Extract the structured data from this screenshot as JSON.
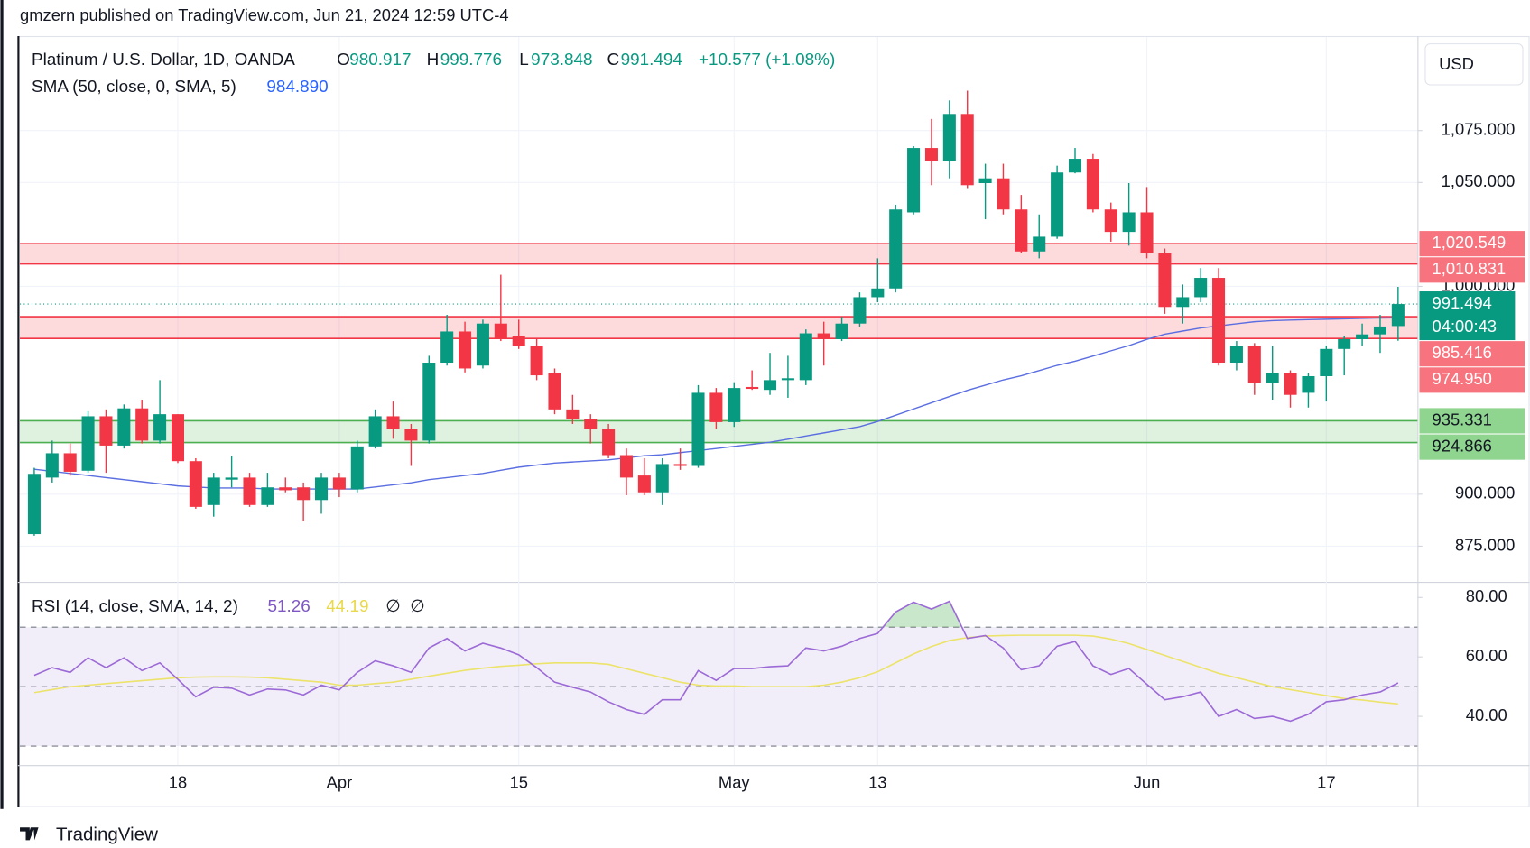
{
  "header": "gmzern published on TradingView.com, Jun 21, 2024 12:59 UTC-4",
  "footer": "TradingView",
  "chart_data": [
    {
      "type": "candlestick",
      "title": "Platinum / U.S. Dollar, 1D, OANDA",
      "ohlc_legend": [
        {
          "label": "O",
          "value": "980.917"
        },
        {
          "label": "H",
          "value": "999.776"
        },
        {
          "label": "L",
          "value": "973.848"
        },
        {
          "label": "C",
          "value": "991.494"
        }
      ],
      "change": "+10.577 (+1.08%)",
      "currency": "USD",
      "categories": [
        null,
        null,
        null,
        null,
        null,
        null,
        null,
        null,
        "18",
        null,
        null,
        null,
        null,
        null,
        null,
        null,
        null,
        "Apr",
        null,
        null,
        null,
        null,
        null,
        null,
        null,
        null,
        null,
        "15",
        null,
        null,
        null,
        null,
        null,
        null,
        null,
        null,
        null,
        null,
        null,
        "May",
        null,
        null,
        null,
        null,
        null,
        null,
        null,
        "13",
        null,
        null,
        null,
        null,
        null,
        null,
        null,
        null,
        null,
        null,
        null,
        null,
        null,
        null,
        "Jun",
        null,
        null,
        null,
        null,
        null,
        null,
        null,
        null,
        null,
        "17",
        null,
        null,
        null,
        null
      ],
      "open": [
        880.8,
        908.0,
        919.7,
        911.3,
        937.5,
        923.4,
        941.3,
        925.8,
        938.5,
        915.9,
        894.8,
        907.0,
        908.0,
        894.8,
        903.3,
        903.3,
        897.2,
        908.0,
        902.3,
        923.0,
        937.5,
        931.4,
        925.8,
        963.3,
        978.3,
        961.9,
        982.1,
        976.0,
        971.3,
        958.2,
        940.8,
        936.1,
        931.4,
        918.8,
        909.0,
        900.9,
        914.5,
        913.6,
        948.8,
        934.7,
        951.6,
        950.2,
        954.9,
        954.9,
        977.4,
        974.6,
        982.1,
        994.8,
        999.0,
        1035.6,
        1066.6,
        1060.5,
        1083.0,
        1049.7,
        1052.0,
        1037.0,
        1016.8,
        1023.9,
        1054.8,
        1061.4,
        1037.0,
        1026.2,
        1035.6,
        1015.9,
        990.1,
        994.8,
        1004.1,
        963.3,
        971.3,
        953.5,
        958.2,
        948.8,
        956.8,
        969.9,
        974.6,
        976.9,
        980.917
      ],
      "high": [
        912.7,
        925.8,
        924.4,
        939.9,
        940.8,
        943.2,
        945.5,
        954.9,
        938.5,
        917.3,
        910.3,
        918.3,
        910.3,
        910.3,
        908.0,
        905.6,
        910.3,
        910.3,
        925.8,
        940.8,
        944.6,
        933.8,
        966.6,
        986.3,
        983.0,
        984.0,
        1005.6,
        984.0,
        974.6,
        960.5,
        947.8,
        938.5,
        933.8,
        922.0,
        917.3,
        917.3,
        922.0,
        952.5,
        951.1,
        953.9,
        959.6,
        968.0,
        966.6,
        979.3,
        983.0,
        985.4,
        997.1,
        1013.5,
        1039.3,
        1067.5,
        1080.6,
        1089.5,
        1094.2,
        1059.0,
        1059.0,
        1044.0,
        1034.6,
        1058.1,
        1066.6,
        1063.7,
        1040.3,
        1049.7,
        1047.8,
        1018.2,
        1000.9,
        1008.8,
        1008.8,
        973.7,
        972.7,
        971.3,
        959.6,
        958.2,
        971.3,
        976.0,
        982.1,
        986.3,
        999.776
      ],
      "low": [
        880.0,
        905.6,
        908.9,
        910.3,
        910.3,
        922.0,
        924.4,
        924.4,
        915.0,
        893.0,
        889.2,
        903.3,
        893.9,
        893.9,
        900.9,
        886.9,
        890.6,
        898.6,
        900.9,
        922.0,
        926.7,
        913.6,
        924.4,
        961.9,
        958.6,
        960.5,
        973.7,
        969.9,
        954.9,
        938.5,
        933.8,
        924.4,
        917.3,
        899.5,
        899.5,
        894.8,
        911.7,
        912.7,
        931.4,
        932.4,
        950.2,
        947.8,
        946.4,
        952.5,
        961.9,
        973.7,
        980.7,
        992.4,
        997.1,
        1034.6,
        1048.7,
        1052.0,
        1047.3,
        1032.3,
        1034.6,
        1015.9,
        1013.5,
        1022.9,
        1054.4,
        1035.6,
        1021.5,
        1019.6,
        1013.5,
        986.8,
        982.1,
        992.4,
        961.9,
        959.6,
        947.8,
        945.5,
        941.7,
        941.7,
        944.6,
        957.2,
        971.3,
        968.0,
        973.848
      ],
      "close": [
        909.8,
        919.7,
        910.8,
        937.5,
        923.4,
        941.3,
        925.8,
        938.5,
        915.9,
        893.9,
        908.0,
        908.0,
        894.8,
        903.3,
        901.9,
        897.2,
        908.0,
        902.3,
        923.0,
        937.5,
        931.4,
        925.8,
        963.3,
        978.3,
        960.5,
        982.1,
        974.6,
        971.3,
        957.2,
        940.8,
        936.1,
        931.4,
        918.8,
        908.0,
        900.9,
        914.5,
        913.6,
        948.8,
        934.7,
        951.1,
        950.7,
        954.9,
        955.8,
        977.4,
        974.6,
        982.1,
        994.8,
        999.0,
        1037.0,
        1066.6,
        1060.5,
        1083.0,
        1048.7,
        1052.0,
        1037.0,
        1016.8,
        1023.9,
        1054.8,
        1061.4,
        1037.0,
        1026.2,
        1035.6,
        1015.9,
        990.1,
        994.8,
        1004.1,
        963.3,
        971.3,
        953.5,
        958.2,
        947.8,
        956.8,
        969.9,
        974.6,
        976.9,
        980.7,
        991.494
      ],
      "up_color": "#089981",
      "down_color": "#f23645",
      "ylim": [
        857.8,
        1120
      ],
      "yticks": [
        {
          "value": 875,
          "label": "875.000"
        },
        {
          "value": 900,
          "label": "900.000"
        },
        {
          "value": 1000,
          "label": "1,000.000"
        },
        {
          "value": 1050,
          "label": "1,050.000"
        },
        {
          "value": 1075,
          "label": "1,075.000"
        }
      ],
      "grid": true,
      "overlays": [
        {
          "name": "SMA (50, close, 0, SMA, 5)",
          "value_label": "984.890",
          "color": "#5b6ee1",
          "values": [
            912,
            911,
            910,
            909,
            908,
            907,
            906,
            905,
            904,
            903.5,
            903,
            903,
            903,
            902.5,
            902.5,
            902.5,
            902.5,
            902.5,
            902.5,
            903.5,
            904.5,
            905.5,
            907,
            908,
            909,
            910,
            911.5,
            913,
            914,
            915,
            915.5,
            916,
            916.5,
            917.5,
            918.5,
            919,
            920,
            921,
            922,
            923,
            924,
            925,
            926.5,
            928,
            929.5,
            931,
            932.5,
            935,
            938,
            941,
            944,
            947,
            950,
            952.5,
            955,
            957,
            959.5,
            962,
            964,
            966.5,
            969,
            971.5,
            974.5,
            977,
            978.5,
            980,
            981,
            982,
            983,
            983.5,
            983.8,
            984,
            984.2,
            984.4,
            984.6,
            984.8,
            984.89
          ]
        }
      ],
      "last_price": {
        "value": 991.494,
        "countdown": "04:00:43",
        "color": "#089981"
      },
      "zones": [
        {
          "values": [
            1020.549,
            1010.831
          ],
          "value_labels": [
            "1,020.549",
            "1,010.831"
          ],
          "color": "#f23645",
          "label_color": "#f7737d"
        },
        {
          "values": [
            985.416,
            974.95
          ],
          "value_labels": [
            "985.416",
            "974.950"
          ],
          "color": "#f23645",
          "label_color": "#f7737d"
        },
        {
          "values": [
            935.331,
            924.866
          ],
          "value_labels": [
            "935.331",
            "924.866"
          ],
          "color": "#4caf50",
          "label_color": "#8fd48f"
        }
      ]
    },
    {
      "type": "line",
      "title": "RSI (14, close, SMA, 14, 2)",
      "series": [
        {
          "color": "#9c6ad6",
          "value_label": "51.26",
          "values": [
            53.8,
            56.4,
            54.8,
            59.7,
            56.4,
            59.7,
            55.4,
            58,
            52.5,
            46.6,
            49.8,
            49.5,
            47.2,
            49.2,
            48.9,
            47.2,
            50.5,
            48.9,
            54.8,
            58.7,
            57,
            54.8,
            63,
            66.2,
            62,
            64.6,
            63,
            60.7,
            56.4,
            51.5,
            49.8,
            48.2,
            44.9,
            42.3,
            40.7,
            45.6,
            45.6,
            55.4,
            52.1,
            56.1,
            56.1,
            56.7,
            57,
            63,
            62,
            63.6,
            66.2,
            67.9,
            75.1,
            78.4,
            76.1,
            78.7,
            66.2,
            67.2,
            63,
            55.7,
            57,
            63.6,
            65.2,
            57,
            54.1,
            56.1,
            50.8,
            45.6,
            46.6,
            48.2,
            40,
            42.3,
            39.3,
            40,
            38.4,
            40.7,
            44.9,
            45.6,
            47.2,
            48.2,
            51.26
          ]
        },
        {
          "color": "#ece36b",
          "value_label": "44.19",
          "values": [
            48,
            49,
            50,
            50.5,
            51,
            51.5,
            52,
            52.5,
            53,
            53.2,
            53.3,
            53.3,
            53.2,
            53,
            52.5,
            52,
            51.5,
            50.5,
            50.5,
            51,
            51.5,
            52.5,
            53.5,
            54.5,
            55.5,
            56.2,
            56.8,
            57.2,
            57.7,
            58,
            58,
            58,
            57.5,
            56,
            54.5,
            53,
            51.5,
            50.5,
            50.2,
            50.2,
            50,
            50,
            50,
            50,
            50.5,
            51.5,
            53,
            55,
            58,
            61,
            63.5,
            65.5,
            66.5,
            67,
            67.2,
            67.3,
            67.3,
            67.3,
            67.3,
            67,
            66,
            64.5,
            62.5,
            60.5,
            58.5,
            56.5,
            54.5,
            53,
            51.5,
            50,
            49,
            48,
            47,
            46,
            45.5,
            44.8,
            44.19
          ]
        }
      ],
      "extra_labels": [
        "∅",
        "∅"
      ],
      "ylim": [
        23.6,
        84.9
      ],
      "yticks": [
        {
          "value": 80,
          "label": "80.00"
        },
        {
          "value": 60,
          "label": "60.00"
        },
        {
          "value": 40,
          "label": "40.00"
        }
      ],
      "levels": [
        70,
        50,
        30
      ],
      "band_color": "#7e57c2",
      "overbought_color": "#4caf50"
    }
  ]
}
